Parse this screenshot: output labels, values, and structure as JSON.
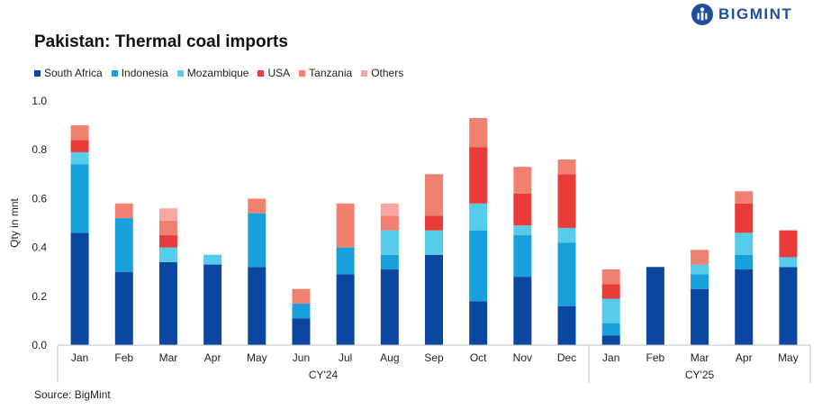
{
  "brand": {
    "name": "BIGMINT",
    "color": "#1f4e9c"
  },
  "source": "Source: BigMint",
  "chart_data": {
    "type": "bar",
    "stacked": true,
    "title": "Pakistan: Thermal coal imports",
    "ylabel": "Qty in mnt",
    "xlabel": "",
    "ylim": [
      0,
      1.0
    ],
    "yticks": [
      "0.0",
      "0.2",
      "0.4",
      "0.6",
      "0.8",
      "1.0"
    ],
    "categories": [
      "Jan",
      "Feb",
      "Mar",
      "Apr",
      "May",
      "Jun",
      "Jul",
      "Aug",
      "Sep",
      "Oct",
      "Nov",
      "Dec",
      "Jan",
      "Feb",
      "Mar",
      "Apr",
      "May"
    ],
    "groups": [
      {
        "label": "CY'24",
        "start": 0,
        "end": 11
      },
      {
        "label": "CY'25",
        "start": 12,
        "end": 16
      }
    ],
    "series": [
      {
        "name": "South Africa",
        "color": "#0b47a1",
        "values": [
          0.46,
          0.3,
          0.34,
          0.33,
          0.32,
          0.11,
          0.29,
          0.31,
          0.37,
          0.18,
          0.28,
          0.16,
          0.04,
          0.32,
          0.23,
          0.31,
          0.32
        ]
      },
      {
        "name": "Indonesia",
        "color": "#18a0dc",
        "values": [
          0.28,
          0.22,
          0.0,
          0.0,
          0.22,
          0.06,
          0.11,
          0.06,
          0.0,
          0.29,
          0.17,
          0.26,
          0.05,
          0.0,
          0.06,
          0.06,
          0.0
        ]
      },
      {
        "name": "Mozambique",
        "color": "#56cbea",
        "values": [
          0.05,
          0.0,
          0.06,
          0.04,
          0.0,
          0.0,
          0.0,
          0.1,
          0.1,
          0.11,
          0.04,
          0.06,
          0.1,
          0.0,
          0.04,
          0.09,
          0.04
        ]
      },
      {
        "name": "USA",
        "color": "#ea3b3b",
        "values": [
          0.05,
          0.0,
          0.05,
          0.0,
          0.0,
          0.0,
          0.0,
          0.0,
          0.06,
          0.23,
          0.13,
          0.22,
          0.06,
          0.0,
          0.0,
          0.12,
          0.11
        ]
      },
      {
        "name": "Tanzania",
        "color": "#f08070",
        "values": [
          0.06,
          0.06,
          0.06,
          0.0,
          0.06,
          0.06,
          0.18,
          0.06,
          0.17,
          0.12,
          0.11,
          0.06,
          0.06,
          0.0,
          0.06,
          0.05,
          0.0
        ]
      },
      {
        "name": "Others",
        "color": "#f6a7a1",
        "values": [
          0.0,
          0.0,
          0.05,
          0.0,
          0.0,
          0.0,
          0.0,
          0.05,
          0.0,
          0.0,
          0.0,
          0.0,
          0.0,
          0.0,
          0.0,
          0.0,
          0.0
        ]
      }
    ],
    "grid": false,
    "legend_position": "top-left"
  }
}
